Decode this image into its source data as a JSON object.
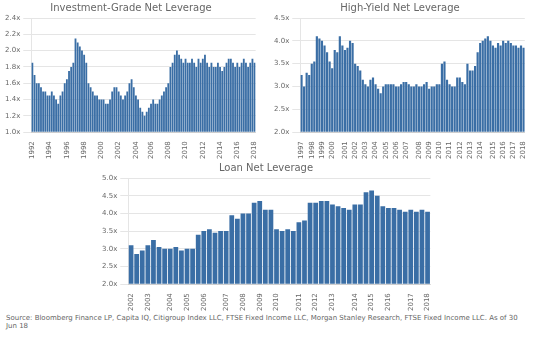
{
  "footer": "Source: Bloomberg Finance LP, Capita IQ, Citigroup Index LLC, FTSE Fixed Income LLC, Morgan Stanley Research, FTSE Fixed Income LLC. As of 30 Jun 18",
  "chart_data": [
    {
      "type": "bar",
      "title": "Investment-Grade Net Leverage",
      "color": "#3a6ea5",
      "grid": true,
      "ylim": [
        1.0,
        2.4
      ],
      "yticks": [
        {
          "value": 1.0,
          "label": "1.0x"
        },
        {
          "value": 1.2,
          "label": "1.2x"
        },
        {
          "value": 1.4,
          "label": "1.4x"
        },
        {
          "value": 1.6,
          "label": "1.6x"
        },
        {
          "value": 1.8,
          "label": "1.8x"
        },
        {
          "value": 2.0,
          "label": "2.0x"
        },
        {
          "value": 2.2,
          "label": "2.2x"
        },
        {
          "value": 2.4,
          "label": "2.4x"
        }
      ],
      "categories": [
        "1992",
        null,
        null,
        null,
        null,
        null,
        null,
        null,
        "1994",
        null,
        null,
        null,
        null,
        null,
        null,
        null,
        "1996",
        null,
        null,
        null,
        null,
        null,
        null,
        null,
        "1998",
        null,
        null,
        null,
        null,
        null,
        null,
        null,
        "2000",
        null,
        null,
        null,
        null,
        null,
        null,
        null,
        "2002",
        null,
        null,
        null,
        null,
        null,
        null,
        null,
        "2004",
        null,
        null,
        null,
        null,
        null,
        null,
        "2006",
        null,
        null,
        null,
        null,
        null,
        null,
        null,
        "2008",
        null,
        null,
        null,
        null,
        null,
        null,
        null,
        "2010",
        null,
        null,
        null,
        null,
        null,
        null,
        null,
        "2012",
        null,
        null,
        null,
        null,
        null,
        null,
        null,
        "2014",
        null,
        null,
        null,
        null,
        null,
        null,
        null,
        "2016",
        null,
        null,
        null,
        null,
        null,
        null,
        null,
        "2018"
      ],
      "values": [
        1.85,
        1.7,
        1.6,
        1.6,
        1.55,
        1.5,
        1.5,
        1.45,
        1.45,
        1.5,
        1.45,
        1.4,
        1.35,
        1.45,
        1.5,
        1.6,
        1.65,
        1.75,
        1.8,
        1.85,
        2.15,
        2.1,
        2.05,
        2.0,
        1.95,
        1.85,
        1.6,
        1.55,
        1.5,
        1.45,
        1.45,
        1.4,
        1.4,
        1.4,
        1.35,
        1.35,
        1.4,
        1.5,
        1.55,
        1.55,
        1.5,
        1.45,
        1.4,
        1.45,
        1.5,
        1.6,
        1.65,
        1.55,
        1.45,
        1.4,
        1.3,
        1.25,
        1.2,
        1.25,
        1.3,
        1.35,
        1.4,
        1.35,
        1.35,
        1.4,
        1.45,
        1.5,
        1.55,
        1.6,
        1.8,
        1.85,
        1.95,
        2.0,
        1.95,
        1.9,
        1.85,
        1.9,
        1.85,
        1.85,
        1.9,
        1.85,
        1.8,
        1.9,
        1.85,
        1.9,
        1.95,
        1.85,
        1.8,
        1.85,
        1.8,
        1.8,
        1.85,
        1.8,
        1.75,
        1.8,
        1.85,
        1.9,
        1.9,
        1.85,
        1.8,
        1.85,
        1.8,
        1.85,
        1.9,
        1.85,
        1.8,
        1.85,
        1.9,
        1.85
      ]
    },
    {
      "type": "bar",
      "title": "High-Yield Net Leverage",
      "color": "#3a6ea5",
      "grid": true,
      "ylim": [
        2.0,
        4.5
      ],
      "yticks": [
        {
          "value": 2.0,
          "label": "2.0x"
        },
        {
          "value": 2.5,
          "label": "2.5x"
        },
        {
          "value": 3.0,
          "label": "3.0x"
        },
        {
          "value": 3.5,
          "label": "3.5x"
        },
        {
          "value": 4.0,
          "label": "4.0x"
        },
        {
          "value": 4.5,
          "label": "4.5x"
        }
      ],
      "categories": [
        "1997",
        null,
        null,
        null,
        "1998",
        null,
        null,
        null,
        "1999",
        null,
        null,
        null,
        "2000",
        null,
        null,
        null,
        null,
        "2001",
        null,
        null,
        null,
        "2002",
        null,
        null,
        null,
        "2003",
        null,
        null,
        null,
        "2004",
        null,
        null,
        null,
        "2005",
        null,
        null,
        null,
        "2006",
        null,
        null,
        null,
        "2007",
        null,
        null,
        null,
        null,
        "2008",
        null,
        null,
        null,
        "2009",
        null,
        null,
        null,
        "2010",
        null,
        null,
        null,
        "2011",
        null,
        null,
        null,
        "2012",
        null,
        null,
        null,
        "2013",
        null,
        null,
        null,
        "2014",
        null,
        null,
        null,
        null,
        "2015",
        null,
        null,
        null,
        "2016",
        null,
        null,
        null,
        "2017",
        null,
        null,
        null,
        "2018"
      ],
      "values": [
        3.25,
        3.0,
        3.3,
        3.25,
        3.5,
        3.55,
        4.1,
        4.05,
        4.0,
        3.9,
        3.75,
        3.55,
        3.4,
        3.8,
        3.75,
        4.1,
        3.9,
        3.8,
        3.85,
        4.0,
        3.95,
        3.5,
        3.45,
        3.35,
        3.15,
        3.05,
        3.0,
        3.15,
        3.2,
        3.05,
        2.95,
        2.85,
        3.0,
        3.05,
        3.05,
        3.05,
        3.05,
        3.0,
        3.0,
        3.05,
        3.1,
        3.1,
        3.05,
        3.0,
        3.0,
        3.05,
        3.0,
        3.0,
        3.05,
        3.1,
        2.95,
        3.0,
        3.0,
        3.05,
        3.05,
        3.5,
        3.55,
        3.15,
        3.05,
        3.0,
        3.0,
        3.2,
        3.2,
        3.1,
        3.05,
        3.5,
        3.35,
        3.35,
        3.45,
        3.75,
        3.95,
        4.0,
        4.05,
        4.1,
        4.0,
        3.9,
        3.85,
        3.95,
        3.9,
        4.0,
        3.95,
        4.0,
        3.95,
        3.9,
        3.9,
        3.85,
        3.9,
        3.85
      ]
    },
    {
      "type": "bar",
      "title": "Loan Net Leverage",
      "color": "#3a6ea5",
      "grid": true,
      "ylim": [
        2.0,
        5.0
      ],
      "yticks": [
        {
          "value": 2.0,
          "label": "2.0x"
        },
        {
          "value": 2.5,
          "label": "2.5x"
        },
        {
          "value": 3.0,
          "label": "3.0x"
        },
        {
          "value": 3.5,
          "label": "3.5x"
        },
        {
          "value": 4.0,
          "label": "4.0x"
        },
        {
          "value": 4.5,
          "label": "4.5x"
        },
        {
          "value": 5.0,
          "label": "5.0x"
        }
      ],
      "categories": [
        "2002",
        null,
        null,
        "2003",
        null,
        null,
        null,
        "2004",
        null,
        null,
        "2005",
        null,
        null,
        "2006",
        null,
        null,
        null,
        "2007",
        null,
        null,
        "2008",
        null,
        null,
        "2009",
        null,
        null,
        "2010",
        null,
        null,
        null,
        "2011",
        null,
        null,
        "2012",
        null,
        null,
        "2013",
        null,
        null,
        null,
        "2014",
        null,
        null,
        "2015",
        null,
        null,
        "2016",
        null,
        null,
        null,
        "2017",
        null,
        null,
        "2018"
      ],
      "values": [
        3.1,
        2.85,
        2.95,
        3.1,
        3.25,
        3.05,
        3.0,
        3.0,
        3.05,
        2.95,
        3.0,
        3.0,
        3.4,
        3.5,
        3.55,
        3.45,
        3.5,
        3.5,
        3.95,
        3.85,
        4.0,
        4.0,
        4.3,
        4.35,
        4.1,
        4.1,
        3.55,
        3.5,
        3.55,
        3.5,
        3.75,
        3.8,
        4.3,
        4.3,
        4.35,
        4.35,
        4.25,
        4.2,
        4.15,
        4.1,
        4.25,
        4.25,
        4.6,
        4.65,
        4.5,
        4.2,
        4.15,
        4.15,
        4.1,
        4.05,
        4.1,
        4.05,
        4.1,
        4.05
      ]
    }
  ]
}
